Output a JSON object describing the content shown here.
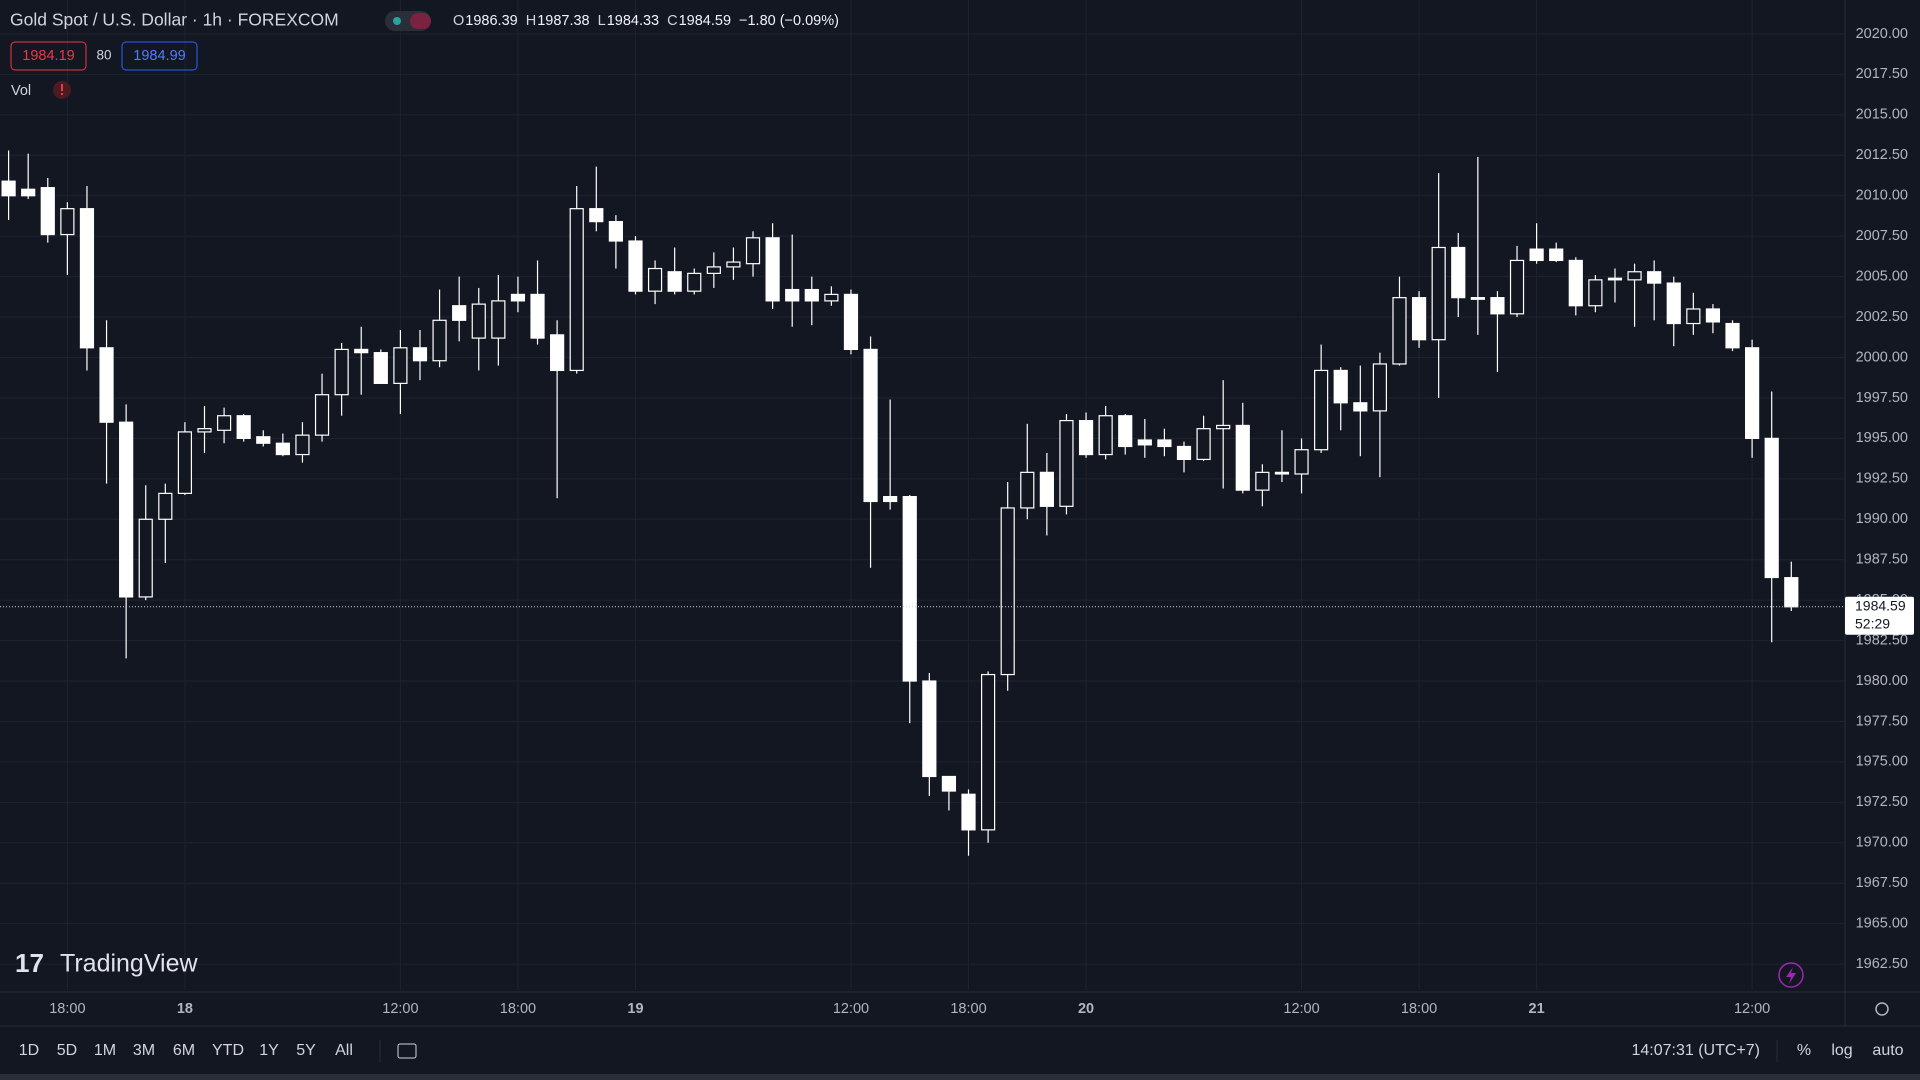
{
  "header": {
    "symbol": "Gold Spot / U.S. Dollar · 1h · FOREXCOM",
    "ohlc": [
      {
        "label": "O",
        "value": 1986.39
      },
      {
        "label": "H",
        "value": 1987.38
      },
      {
        "label": "L",
        "value": 1984.33
      },
      {
        "label": "C",
        "value": 1984.59
      }
    ],
    "change": "−1.80 (−0.09%)",
    "sell": 1984.19,
    "spread": 80,
    "buy": 1984.99,
    "indicator": "Vol"
  },
  "chart_data": {
    "type": "candlestick",
    "categories": [
      null,
      null,
      null,
      "18:00",
      null,
      null,
      null,
      null,
      null,
      "18",
      null,
      null,
      null,
      null,
      null,
      null,
      null,
      null,
      null,
      null,
      "12:00",
      null,
      null,
      null,
      null,
      null,
      "18:00",
      null,
      null,
      null,
      null,
      null,
      "19",
      null,
      null,
      null,
      null,
      null,
      null,
      null,
      null,
      null,
      null,
      "12:00",
      null,
      null,
      null,
      null,
      null,
      "18:00",
      null,
      null,
      null,
      null,
      null,
      "20",
      null,
      null,
      null,
      null,
      null,
      null,
      null,
      null,
      null,
      null,
      "12:00",
      null,
      null,
      null,
      null,
      null,
      "18:00",
      null,
      null,
      null,
      null,
      null,
      "21",
      null,
      null,
      null,
      null,
      null,
      null,
      null,
      null,
      null,
      null,
      "12:00",
      null,
      null
    ],
    "open": [
      2010.9,
      2010.4,
      2010.5,
      2007.6,
      2009.2,
      2000.6,
      1996.0,
      1985.2,
      1990.0,
      1991.6,
      1995.4,
      1995.5,
      1996.4,
      1995.1,
      1994.7,
      1994.0,
      1995.2,
      1997.7,
      2000.5,
      2000.3,
      1998.4,
      2000.6,
      1999.8,
      2003.2,
      2001.2,
      2001.2,
      2003.9,
      2003.9,
      2001.4,
      1999.2,
      2009.2,
      2008.4,
      2007.2,
      2004.1,
      2005.3,
      2004.1,
      2005.2,
      2005.6,
      2005.8,
      2007.4,
      2004.2,
      2004.2,
      2003.5,
      2003.9,
      2000.5,
      1991.4,
      1991.4,
      1980.0,
      1974.1,
      1973.0,
      1970.8,
      1980.4,
      1990.7,
      1992.9,
      1990.8,
      1996.1,
      1994.0,
      1996.4,
      1994.9,
      1994.9,
      1994.5,
      1993.7,
      1995.6,
      1995.8,
      1991.8,
      1992.9,
      1992.8,
      1994.3,
      1999.2,
      1997.2,
      1996.7,
      1999.6,
      2003.7,
      2001.1,
      2006.8,
      2003.7,
      2003.7,
      2002.7,
      2006.7,
      2006.7,
      2006.0,
      2003.2,
      2004.9,
      2004.8,
      2005.3,
      2004.6,
      2002.1,
      2003.0,
      2002.1,
      2000.6,
      1995.0,
      1986.39
    ],
    "high": [
      2012.8,
      2012.6,
      2011.1,
      2009.6,
      2010.6,
      2002.3,
      1997.1,
      1992.1,
      1992.2,
      1996.0,
      1997.0,
      1996.9,
      1996.5,
      1995.5,
      1995.3,
      1996.0,
      1999.0,
      2000.9,
      2001.9,
      2000.5,
      2001.7,
      2001.7,
      2004.2,
      2005.0,
      2004.3,
      2005.1,
      2005.0,
      2006.0,
      2002.3,
      2010.6,
      2011.8,
      2008.8,
      2007.5,
      2006.0,
      2006.8,
      2005.5,
      2006.5,
      2006.8,
      2007.8,
      2008.3,
      2007.6,
      2005.0,
      2004.4,
      2004.2,
      2001.3,
      1997.4,
      1991.5,
      1980.5,
      1974.1,
      1973.3,
      1980.6,
      1992.3,
      1995.9,
      1994.1,
      1996.5,
      1996.6,
      1997.0,
      1996.5,
      1996.2,
      1995.6,
      1994.8,
      1996.4,
      1998.6,
      1997.2,
      1993.4,
      1995.5,
      1995.0,
      2000.8,
      1999.4,
      1999.5,
      2000.3,
      2005.0,
      2004.1,
      2011.4,
      2007.7,
      2012.4,
      2004.1,
      2006.9,
      2008.3,
      2007.1,
      2006.2,
      2005.1,
      2005.5,
      2005.8,
      2006.0,
      2005.0,
      2004.0,
      2003.3,
      2002.3,
      2001.1,
      1997.9,
      1987.38
    ],
    "low": [
      2008.5,
      2009.8,
      2007.1,
      2005.1,
      1999.2,
      1992.2,
      1981.4,
      1985.0,
      1987.3,
      1991.5,
      1994.1,
      1994.7,
      1994.8,
      1994.5,
      1993.9,
      1993.5,
      1994.8,
      1996.4,
      1997.7,
      1998.4,
      1996.5,
      1998.6,
      1999.4,
      2001.0,
      1999.2,
      1999.5,
      2002.8,
      2000.8,
      1991.3,
      1999.0,
      2007.8,
      2005.5,
      2003.9,
      2003.3,
      2003.9,
      2003.9,
      2004.3,
      2004.8,
      2005.0,
      2003.0,
      2001.9,
      2002.0,
      2003.2,
      2000.2,
      1987.0,
      1990.6,
      1977.4,
      1972.9,
      1972.0,
      1969.2,
      1970.0,
      1979.4,
      1990.0,
      1989.0,
      1990.3,
      1993.8,
      1993.7,
      1994.0,
      1993.8,
      1993.9,
      1992.9,
      1993.6,
      1991.9,
      1991.6,
      1990.8,
      1992.3,
      1991.6,
      1994.1,
      1995.5,
      1993.9,
      1992.6,
      1999.5,
      2000.6,
      1997.5,
      2002.5,
      2001.4,
      1999.1,
      2002.5,
      2005.8,
      2005.9,
      2002.6,
      2002.8,
      2003.4,
      2001.9,
      2002.3,
      2000.7,
      2001.4,
      2001.5,
      2000.4,
      1993.8,
      1982.4,
      1984.33
    ],
    "close": [
      2010.0,
      2010.0,
      2007.6,
      2009.2,
      2000.6,
      1996.0,
      1985.2,
      1990.0,
      1991.6,
      1995.4,
      1995.6,
      1996.4,
      1995.0,
      1994.7,
      1994.0,
      1995.2,
      1997.7,
      2000.5,
      2000.3,
      1998.4,
      2000.6,
      1999.8,
      2002.3,
      2002.3,
      2003.3,
      2003.5,
      2003.5,
      2001.2,
      1999.2,
      2009.2,
      2008.4,
      2007.2,
      2004.1,
      2005.5,
      2004.1,
      2005.2,
      2005.6,
      2005.9,
      2007.4,
      2003.5,
      2003.5,
      2003.5,
      2003.9,
      2000.5,
      1991.1,
      1991.1,
      1980.0,
      1974.1,
      1973.2,
      1970.8,
      1980.4,
      1990.7,
      1992.9,
      1990.8,
      1996.1,
      1994.0,
      1996.4,
      1994.5,
      1994.6,
      1994.5,
      1993.7,
      1995.6,
      1995.8,
      1991.8,
      1992.9,
      1992.8,
      1994.3,
      1999.2,
      1997.2,
      1996.7,
      1999.6,
      2003.7,
      2001.1,
      2006.8,
      2003.7,
      2003.6,
      2002.7,
      2006.0,
      2006.0,
      2006.0,
      2003.2,
      2004.8,
      2004.8,
      2005.3,
      2004.6,
      2002.1,
      2003.0,
      2002.2,
      2000.6,
      1995.0,
      1986.4,
      1984.59
    ],
    "color": "#ffffff",
    "last_price": 1984.59,
    "countdown": "52:29",
    "ylim": [
      1960.9,
      2022.1
    ],
    "yticks": [
      {
        "value": 1962.5,
        "label": "1962.50"
      },
      {
        "value": 1965,
        "label": "1965.00"
      },
      {
        "value": 1967.5,
        "label": "1967.50"
      },
      {
        "value": 1970,
        "label": "1970.00"
      },
      {
        "value": 1972.5,
        "label": "1972.50"
      },
      {
        "value": 1975,
        "label": "1975.00"
      },
      {
        "value": 1977.5,
        "label": "1977.50"
      },
      {
        "value": 1980,
        "label": "1980.00"
      },
      {
        "value": 1982.5,
        "label": "1982.50"
      },
      {
        "value": 1985,
        "label": "1985.00"
      },
      {
        "value": 1987.5,
        "label": "1987.50"
      },
      {
        "value": 1990,
        "label": "1990.00"
      },
      {
        "value": 1992.5,
        "label": "1992.50"
      },
      {
        "value": 1995,
        "label": "1995.00"
      },
      {
        "value": 1997.5,
        "label": "1997.50"
      },
      {
        "value": 2000,
        "label": "2000.00"
      },
      {
        "value": 2002.5,
        "label": "2002.50"
      },
      {
        "value": 2005,
        "label": "2005.00"
      },
      {
        "value": 2007.5,
        "label": "2007.50"
      },
      {
        "value": 2010,
        "label": "2010.00"
      },
      {
        "value": 2012.5,
        "label": "2012.50"
      },
      {
        "value": 2015,
        "label": "2015.00"
      },
      {
        "value": 2017.5,
        "label": "2017.50"
      },
      {
        "value": 2020,
        "label": "2020.00"
      }
    ],
    "grid": true
  },
  "logo": "TradingView",
  "toolbar": {
    "ranges": [
      "1D",
      "5D",
      "1M",
      "3M",
      "6M",
      "YTD",
      "1Y",
      "5Y",
      "All"
    ],
    "clock": "14:07:31 (UTC+7)",
    "options": [
      "%",
      "log",
      "auto"
    ]
  }
}
